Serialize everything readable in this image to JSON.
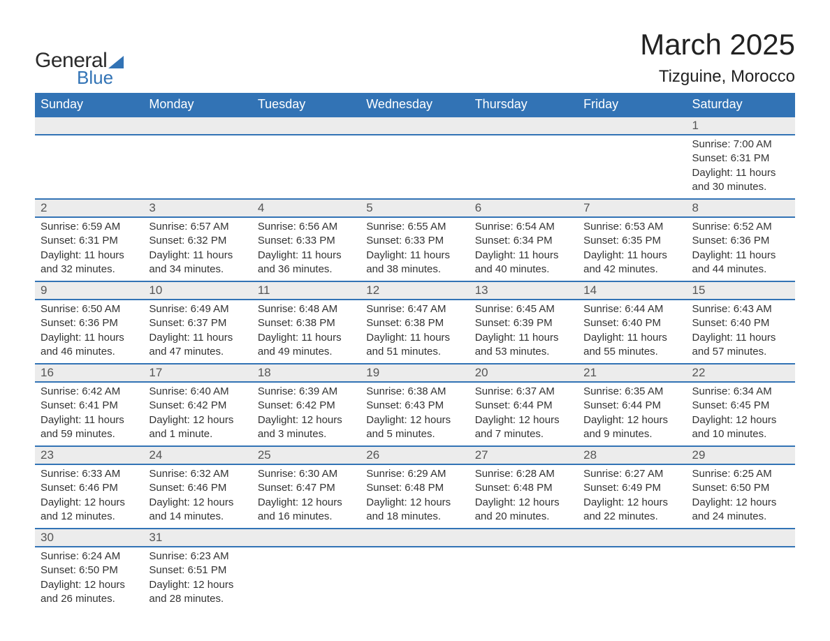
{
  "logo": {
    "word1": "General",
    "word2": "Blue"
  },
  "title": {
    "month": "March 2025",
    "location": "Tizguine, Morocco"
  },
  "colors": {
    "header_bg": "#3273b5",
    "header_text": "#ffffff",
    "daynum_bg": "#ececec",
    "daynum_text": "#555555",
    "detail_text": "#333333",
    "row_divider": "#3273b5",
    "logo_accent": "#3273b5"
  },
  "typography": {
    "month_title_fontsize": 42,
    "location_fontsize": 24,
    "header_fontsize": 18,
    "daynum_fontsize": 17,
    "detail_fontsize": 15
  },
  "columns": [
    "Sunday",
    "Monday",
    "Tuesday",
    "Wednesday",
    "Thursday",
    "Friday",
    "Saturday"
  ],
  "weeks": [
    [
      null,
      null,
      null,
      null,
      null,
      null,
      {
        "n": "1",
        "sunrise": "7:00 AM",
        "sunset": "6:31 PM",
        "daylight": "11 hours and 30 minutes."
      }
    ],
    [
      {
        "n": "2",
        "sunrise": "6:59 AM",
        "sunset": "6:31 PM",
        "daylight": "11 hours and 32 minutes."
      },
      {
        "n": "3",
        "sunrise": "6:57 AM",
        "sunset": "6:32 PM",
        "daylight": "11 hours and 34 minutes."
      },
      {
        "n": "4",
        "sunrise": "6:56 AM",
        "sunset": "6:33 PM",
        "daylight": "11 hours and 36 minutes."
      },
      {
        "n": "5",
        "sunrise": "6:55 AM",
        "sunset": "6:33 PM",
        "daylight": "11 hours and 38 minutes."
      },
      {
        "n": "6",
        "sunrise": "6:54 AM",
        "sunset": "6:34 PM",
        "daylight": "11 hours and 40 minutes."
      },
      {
        "n": "7",
        "sunrise": "6:53 AM",
        "sunset": "6:35 PM",
        "daylight": "11 hours and 42 minutes."
      },
      {
        "n": "8",
        "sunrise": "6:52 AM",
        "sunset": "6:36 PM",
        "daylight": "11 hours and 44 minutes."
      }
    ],
    [
      {
        "n": "9",
        "sunrise": "6:50 AM",
        "sunset": "6:36 PM",
        "daylight": "11 hours and 46 minutes."
      },
      {
        "n": "10",
        "sunrise": "6:49 AM",
        "sunset": "6:37 PM",
        "daylight": "11 hours and 47 minutes."
      },
      {
        "n": "11",
        "sunrise": "6:48 AM",
        "sunset": "6:38 PM",
        "daylight": "11 hours and 49 minutes."
      },
      {
        "n": "12",
        "sunrise": "6:47 AM",
        "sunset": "6:38 PM",
        "daylight": "11 hours and 51 minutes."
      },
      {
        "n": "13",
        "sunrise": "6:45 AM",
        "sunset": "6:39 PM",
        "daylight": "11 hours and 53 minutes."
      },
      {
        "n": "14",
        "sunrise": "6:44 AM",
        "sunset": "6:40 PM",
        "daylight": "11 hours and 55 minutes."
      },
      {
        "n": "15",
        "sunrise": "6:43 AM",
        "sunset": "6:40 PM",
        "daylight": "11 hours and 57 minutes."
      }
    ],
    [
      {
        "n": "16",
        "sunrise": "6:42 AM",
        "sunset": "6:41 PM",
        "daylight": "11 hours and 59 minutes."
      },
      {
        "n": "17",
        "sunrise": "6:40 AM",
        "sunset": "6:42 PM",
        "daylight": "12 hours and 1 minute."
      },
      {
        "n": "18",
        "sunrise": "6:39 AM",
        "sunset": "6:42 PM",
        "daylight": "12 hours and 3 minutes."
      },
      {
        "n": "19",
        "sunrise": "6:38 AM",
        "sunset": "6:43 PM",
        "daylight": "12 hours and 5 minutes."
      },
      {
        "n": "20",
        "sunrise": "6:37 AM",
        "sunset": "6:44 PM",
        "daylight": "12 hours and 7 minutes."
      },
      {
        "n": "21",
        "sunrise": "6:35 AM",
        "sunset": "6:44 PM",
        "daylight": "12 hours and 9 minutes."
      },
      {
        "n": "22",
        "sunrise": "6:34 AM",
        "sunset": "6:45 PM",
        "daylight": "12 hours and 10 minutes."
      }
    ],
    [
      {
        "n": "23",
        "sunrise": "6:33 AM",
        "sunset": "6:46 PM",
        "daylight": "12 hours and 12 minutes."
      },
      {
        "n": "24",
        "sunrise": "6:32 AM",
        "sunset": "6:46 PM",
        "daylight": "12 hours and 14 minutes."
      },
      {
        "n": "25",
        "sunrise": "6:30 AM",
        "sunset": "6:47 PM",
        "daylight": "12 hours and 16 minutes."
      },
      {
        "n": "26",
        "sunrise": "6:29 AM",
        "sunset": "6:48 PM",
        "daylight": "12 hours and 18 minutes."
      },
      {
        "n": "27",
        "sunrise": "6:28 AM",
        "sunset": "6:48 PM",
        "daylight": "12 hours and 20 minutes."
      },
      {
        "n": "28",
        "sunrise": "6:27 AM",
        "sunset": "6:49 PM",
        "daylight": "12 hours and 22 minutes."
      },
      {
        "n": "29",
        "sunrise": "6:25 AM",
        "sunset": "6:50 PM",
        "daylight": "12 hours and 24 minutes."
      }
    ],
    [
      {
        "n": "30",
        "sunrise": "6:24 AM",
        "sunset": "6:50 PM",
        "daylight": "12 hours and 26 minutes."
      },
      {
        "n": "31",
        "sunrise": "6:23 AM",
        "sunset": "6:51 PM",
        "daylight": "12 hours and 28 minutes."
      },
      null,
      null,
      null,
      null,
      null
    ]
  ],
  "labels": {
    "sunrise": "Sunrise: ",
    "sunset": "Sunset: ",
    "daylight": "Daylight: "
  }
}
